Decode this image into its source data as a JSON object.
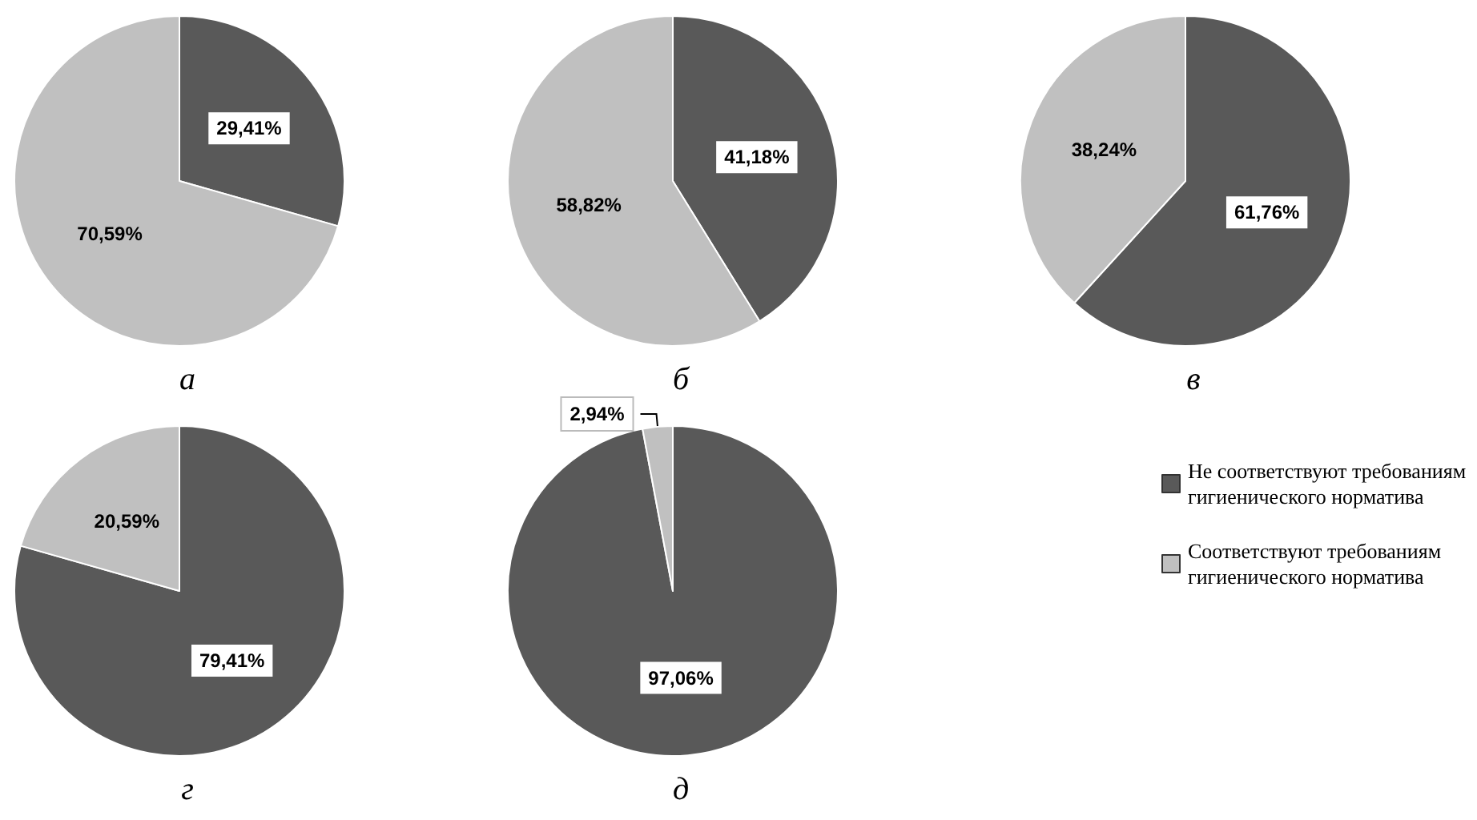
{
  "chart_data": [
    {
      "type": "pie",
      "title": "а",
      "categories": [
        null,
        null
      ],
      "values": [
        29.41,
        70.59
      ],
      "colors": [
        "#595959",
        "#c0c0c0"
      ],
      "value_labels": [
        "29,41%",
        "70,59%"
      ]
    },
    {
      "type": "pie",
      "title": "б",
      "categories": [
        null,
        null
      ],
      "values": [
        41.18,
        58.82
      ],
      "colors": [
        "#595959",
        "#c0c0c0"
      ],
      "value_labels": [
        "41,18%",
        "58,82%"
      ]
    },
    {
      "type": "pie",
      "title": "в",
      "categories": [
        null,
        null
      ],
      "values": [
        61.76,
        38.24
      ],
      "colors": [
        "#595959",
        "#c0c0c0"
      ],
      "value_labels": [
        "61,76%",
        "38,24%"
      ]
    },
    {
      "type": "pie",
      "title": "г",
      "categories": [
        null,
        null
      ],
      "values": [
        79.41,
        20.59
      ],
      "colors": [
        "#595959",
        "#c0c0c0"
      ],
      "value_labels": [
        "79,41%",
        "20,59%"
      ]
    },
    {
      "type": "pie",
      "title": "д",
      "categories": [
        "Не соответствуют требованиям гигиенического норматива",
        "Соответствуют требованиям гигиенического норматива"
      ],
      "values": [
        97.06,
        2.94
      ],
      "colors": [
        "#595959",
        "#c0c0c0"
      ],
      "value_labels": [
        "97,06%",
        "2,94%"
      ],
      "legend": "right"
    }
  ]
}
